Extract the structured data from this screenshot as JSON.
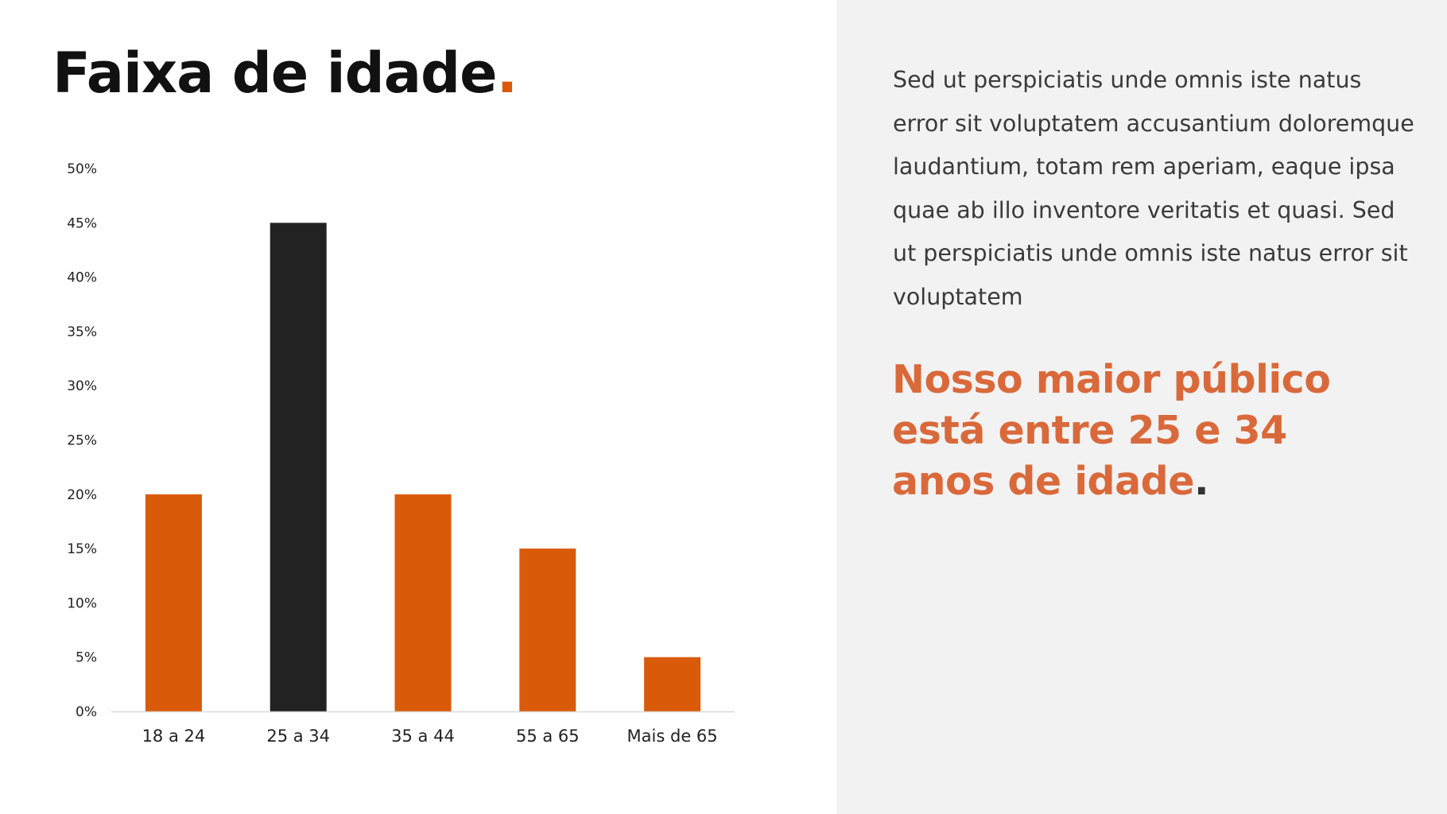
{
  "slide": {
    "title": "Faixa de idade",
    "title_dot": ".",
    "body_text": "Sed ut perspiciatis unde omnis iste natus error sit voluptatem accusantium doloremque laudantium, totam rem aperiam, eaque ipsa quae ab illo inventore veritatis et quasi. Sed ut perspiciatis unde omnis iste natus error sit voluptatem",
    "highlight_text": "Nosso maior público está entre 25 e 34 anos de idade",
    "highlight_dot": "."
  },
  "colors": {
    "accent": "#d95b0a",
    "highlight_bar": "#222222",
    "highlight_text": "#d9693a",
    "title": "#111111",
    "right_panel_bg": "#f2f2f2"
  },
  "chart_data": {
    "type": "bar",
    "categories": [
      "18 a 24",
      "25 a 34",
      "35 a 44",
      "55 a 65",
      "Mais de 65"
    ],
    "values": [
      20,
      45,
      20,
      15,
      5
    ],
    "highlighted_category": "25 a 34",
    "ylim": [
      0,
      50
    ],
    "yticks": [
      0,
      5,
      10,
      15,
      20,
      25,
      30,
      35,
      40,
      45,
      50
    ],
    "ytick_labels": [
      "0%",
      "5%",
      "10%",
      "15%",
      "20%",
      "25%",
      "30%",
      "35%",
      "40%",
      "45%",
      "50%"
    ],
    "grid": false,
    "legend": "none",
    "title": "",
    "xlabel": "",
    "ylabel": ""
  }
}
